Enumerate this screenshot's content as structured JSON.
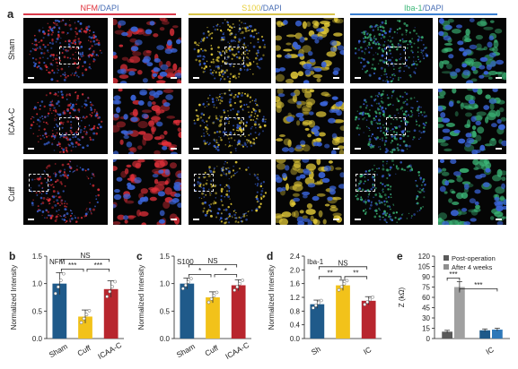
{
  "figure": {
    "panel_a_letter": "a",
    "columns": [
      {
        "stain": "NFM",
        "counter": "/DAPI",
        "stain_color": "#e0303a",
        "line_color": "#d93a4a"
      },
      {
        "stain": "S100",
        "counter": "/DAPI",
        "stain_color": "#e8cf3a",
        "line_color": "#d7c34a"
      },
      {
        "stain": "Iba-1",
        "counter": "/DAPI",
        "stain_color": "#3cb878",
        "line_color": "#3a7fd0"
      }
    ],
    "rows": [
      "Sham",
      "ICAA-C",
      "Cuff"
    ],
    "dapi_color": "#3a64d8"
  },
  "charts": [
    {
      "letter": "b",
      "chart_data": {
        "type": "bar",
        "inset_label": "NFM",
        "ylabel": "Normalized Intensity",
        "categories": [
          "Sham",
          "Cuff",
          "ICAA-C"
        ],
        "values": [
          1.0,
          0.4,
          0.9
        ],
        "errors": [
          0.2,
          0.12,
          0.15
        ],
        "colors": [
          "#1f5a8a",
          "#f2c21a",
          "#b8262e"
        ],
        "yticks": [
          "0.0",
          "0.5",
          "1.0",
          "1.5"
        ],
        "ylim": [
          0,
          1.5
        ],
        "sig": [
          {
            "from": 0,
            "to": 1,
            "label": "***",
            "level": 1
          },
          {
            "from": 1,
            "to": 2,
            "label": "***",
            "level": 1
          },
          {
            "from": 0,
            "to": 2,
            "label": "NS",
            "level": 2
          }
        ]
      }
    },
    {
      "letter": "c",
      "chart_data": {
        "type": "bar",
        "inset_label": "S100",
        "ylabel": "Normalized Intensity",
        "categories": [
          "Sham",
          "Cuff",
          "ICAA-C"
        ],
        "values": [
          1.0,
          0.75,
          0.97
        ],
        "errors": [
          0.1,
          0.1,
          0.1
        ],
        "colors": [
          "#1f5a8a",
          "#f2c21a",
          "#b8262e"
        ],
        "yticks": [
          "0.0",
          "0.5",
          "1.0",
          "1.5"
        ],
        "ylim": [
          0,
          1.5
        ],
        "sig": [
          {
            "from": 0,
            "to": 1,
            "label": "*",
            "level": 1
          },
          {
            "from": 1,
            "to": 2,
            "label": "*",
            "level": 1
          },
          {
            "from": 0,
            "to": 2,
            "label": "NS",
            "level": 2
          }
        ]
      }
    },
    {
      "letter": "d",
      "chart_data": {
        "type": "bar",
        "inset_label": "Iba-1",
        "ylabel": "Normalized Intensity",
        "categories": [
          "Sh",
          "",
          "IC"
        ],
        "values": [
          1.0,
          1.55,
          1.1
        ],
        "errors": [
          0.12,
          0.15,
          0.12
        ],
        "colors": [
          "#1f5a8a",
          "#f2c21a",
          "#b8262e"
        ],
        "yticks": [
          "0.0",
          "0.4",
          "0.8",
          "1.2",
          "1.6",
          "2.0",
          "2.4"
        ],
        "ylim": [
          0,
          2.4
        ],
        "sig": [
          {
            "from": 0,
            "to": 1,
            "label": "**",
            "level": 1
          },
          {
            "from": 1,
            "to": 2,
            "label": "**",
            "level": 1
          },
          {
            "from": 0,
            "to": 2,
            "label": "NS",
            "level": 2
          }
        ]
      }
    },
    {
      "letter": "e",
      "chart_data": {
        "type": "bar",
        "ylabel": "Z (kΩ)",
        "legend": [
          "Post-operation",
          "After 4 weeks"
        ],
        "legend_colors": [
          "#5a5a5a",
          "#8f8f8f"
        ],
        "groups": [
          "",
          "IC"
        ],
        "series": [
          {
            "name": "Post-operation",
            "values": [
              10,
              12
            ],
            "colors": [
              "#5a5a5a",
              "#1f5a8a"
            ]
          },
          {
            "name": "After 4 weeks",
            "values": [
              75,
              13
            ],
            "colors": [
              "#a0a0a0",
              "#2e78b8"
            ]
          }
        ],
        "errors": [
          [
            2,
            2
          ],
          [
            8,
            2
          ]
        ],
        "yticks": [
          "0",
          "15",
          "30",
          "45",
          "60",
          "75",
          "90",
          "105",
          "120"
        ],
        "ylim": [
          0,
          120
        ],
        "sig": [
          {
            "label": "***",
            "type": "within"
          },
          {
            "label": "***",
            "type": "between"
          }
        ]
      }
    }
  ]
}
